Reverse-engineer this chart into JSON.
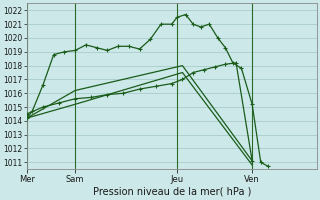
{
  "background_color": "#cce8e8",
  "grid_color": "#aacccc",
  "line_color": "#1a5c1a",
  "ylim": [
    1010.5,
    1022.5
  ],
  "yticks": [
    1011,
    1012,
    1013,
    1014,
    1015,
    1016,
    1017,
    1018,
    1019,
    1020,
    1021,
    1022
  ],
  "xlabel": "Pression niveau de la mer( hPa )",
  "day_labels": [
    "Mer",
    "Sam",
    "Jeu",
    "Ven"
  ],
  "day_positions": [
    0,
    4.5,
    14,
    21
  ],
  "xlim": [
    0,
    27
  ],
  "line1_x": [
    0,
    0.5,
    1.5,
    2.5,
    3.5,
    4.5,
    5.5,
    6.5,
    7.5,
    8.5,
    9.5,
    10.5,
    11.5,
    12.5,
    13.5,
    14.0,
    14.8,
    15.5,
    16.2,
    17.0,
    17.8,
    18.5,
    19.2,
    20.0,
    21.0,
    21.8,
    22.5
  ],
  "line1_y": [
    1014.2,
    1014.7,
    1016.6,
    1018.8,
    1019.0,
    1019.1,
    1019.5,
    1019.3,
    1019.1,
    1019.4,
    1019.4,
    1019.2,
    1019.9,
    1021.0,
    1021.0,
    1021.5,
    1021.7,
    1021.0,
    1020.8,
    1021.0,
    1020.0,
    1019.3,
    1018.2,
    1017.8,
    1015.2,
    1011.0,
    1010.7
  ],
  "line2_x": [
    0,
    1.5,
    3.0,
    4.5,
    6.0,
    7.5,
    9.0,
    10.5,
    12.0,
    13.5,
    14.5,
    15.5,
    16.5,
    17.5,
    18.5,
    19.5,
    21.0
  ],
  "line2_y": [
    1014.5,
    1015.0,
    1015.3,
    1015.6,
    1015.7,
    1015.9,
    1016.0,
    1016.3,
    1016.5,
    1016.7,
    1017.0,
    1017.5,
    1017.7,
    1017.9,
    1018.1,
    1018.2,
    1011.1
  ],
  "line3_x": [
    0,
    4.5,
    14.5,
    21.0
  ],
  "line3_y": [
    1014.2,
    1016.2,
    1018.0,
    1011.1
  ],
  "line4_x": [
    0,
    4.5,
    14.5,
    21.0
  ],
  "line4_y": [
    1014.2,
    1015.2,
    1017.5,
    1010.8
  ]
}
